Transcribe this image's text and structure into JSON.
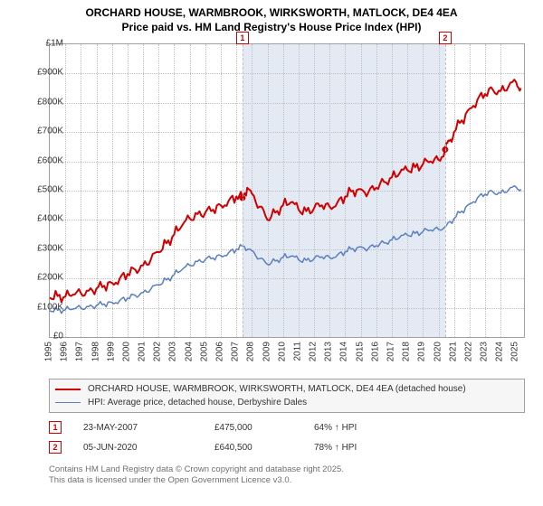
{
  "title_line1": "ORCHARD HOUSE, WARMBROOK, WIRKSWORTH, MATLOCK, DE4 4EA",
  "title_line2": "Price paid vs. HM Land Registry's House Price Index (HPI)",
  "chart": {
    "type": "line",
    "background_color": "#ffffff",
    "grid_color": "#bfbfbf",
    "shaded_band_color": "#e4eaf3",
    "plot_border_color": "#a0a0a0",
    "ylim": [
      0,
      1000000
    ],
    "ytick_step": 100000,
    "ytick_labels": [
      "£0",
      "£100K",
      "£200K",
      "£300K",
      "£400K",
      "£500K",
      "£600K",
      "£700K",
      "£800K",
      "£900K",
      "£1M"
    ],
    "xlim": [
      1995,
      2025.5
    ],
    "xticks": [
      1995,
      1996,
      1997,
      1998,
      1999,
      2000,
      2001,
      2002,
      2003,
      2004,
      2005,
      2006,
      2007,
      2008,
      2009,
      2010,
      2011,
      2012,
      2013,
      2014,
      2015,
      2016,
      2017,
      2018,
      2019,
      2020,
      2021,
      2022,
      2023,
      2024,
      2025
    ],
    "series": [
      {
        "name": "price-paid",
        "label": "ORCHARD HOUSE, WARMBROOK, WIRKSWORTH, MATLOCK, DE4 4EA (detached house)",
        "color": "#d00000",
        "width": 2,
        "points": [
          [
            1995.0,
            135000
          ],
          [
            1995.5,
            140000
          ],
          [
            1996.0,
            138000
          ],
          [
            1996.5,
            145000
          ],
          [
            1997.0,
            150000
          ],
          [
            1997.5,
            158000
          ],
          [
            1998.0,
            165000
          ],
          [
            1998.5,
            175000
          ],
          [
            1999.0,
            185000
          ],
          [
            1999.5,
            200000
          ],
          [
            2000.0,
            215000
          ],
          [
            2000.5,
            230000
          ],
          [
            2001.0,
            245000
          ],
          [
            2001.5,
            265000
          ],
          [
            2002.0,
            290000
          ],
          [
            2002.5,
            320000
          ],
          [
            2003.0,
            350000
          ],
          [
            2003.5,
            380000
          ],
          [
            2004.0,
            405000
          ],
          [
            2004.5,
            420000
          ],
          [
            2005.0,
            425000
          ],
          [
            2005.5,
            435000
          ],
          [
            2006.0,
            450000
          ],
          [
            2006.5,
            465000
          ],
          [
            2007.0,
            480000
          ],
          [
            2007.39,
            475000
          ],
          [
            2007.7,
            510000
          ],
          [
            2008.0,
            490000
          ],
          [
            2008.5,
            445000
          ],
          [
            2009.0,
            400000
          ],
          [
            2009.5,
            425000
          ],
          [
            2010.0,
            450000
          ],
          [
            2010.5,
            460000
          ],
          [
            2011.0,
            435000
          ],
          [
            2011.5,
            430000
          ],
          [
            2012.0,
            440000
          ],
          [
            2012.5,
            450000
          ],
          [
            2013.0,
            445000
          ],
          [
            2013.5,
            460000
          ],
          [
            2014.0,
            480000
          ],
          [
            2014.5,
            500000
          ],
          [
            2015.0,
            505000
          ],
          [
            2015.5,
            495000
          ],
          [
            2016.0,
            510000
          ],
          [
            2016.5,
            530000
          ],
          [
            2017.0,
            545000
          ],
          [
            2017.5,
            560000
          ],
          [
            2018.0,
            570000
          ],
          [
            2018.5,
            580000
          ],
          [
            2019.0,
            590000
          ],
          [
            2019.5,
            600000
          ],
          [
            2020.0,
            605000
          ],
          [
            2020.43,
            640500
          ],
          [
            2020.7,
            670000
          ],
          [
            2021.0,
            700000
          ],
          [
            2021.5,
            740000
          ],
          [
            2022.0,
            780000
          ],
          [
            2022.5,
            810000
          ],
          [
            2023.0,
            830000
          ],
          [
            2023.5,
            845000
          ],
          [
            2024.0,
            840000
          ],
          [
            2024.5,
            855000
          ],
          [
            2025.0,
            870000
          ],
          [
            2025.3,
            850000
          ]
        ]
      },
      {
        "name": "hpi",
        "label": "HPI: Average price, detached house, Derbyshire Dales",
        "color": "#5a7fc0",
        "width": 1.5,
        "points": [
          [
            1995.0,
            90000
          ],
          [
            1995.5,
            92000
          ],
          [
            1996.0,
            93000
          ],
          [
            1996.5,
            96000
          ],
          [
            1997.0,
            100000
          ],
          [
            1997.5,
            104000
          ],
          [
            1998.0,
            108000
          ],
          [
            1998.5,
            113000
          ],
          [
            1999.0,
            118000
          ],
          [
            1999.5,
            125000
          ],
          [
            2000.0,
            133000
          ],
          [
            2000.5,
            142000
          ],
          [
            2001.0,
            152000
          ],
          [
            2001.5,
            164000
          ],
          [
            2002.0,
            178000
          ],
          [
            2002.5,
            195000
          ],
          [
            2003.0,
            213000
          ],
          [
            2003.5,
            230000
          ],
          [
            2004.0,
            245000
          ],
          [
            2004.5,
            258000
          ],
          [
            2005.0,
            265000
          ],
          [
            2005.5,
            270000
          ],
          [
            2006.0,
            278000
          ],
          [
            2006.5,
            288000
          ],
          [
            2007.0,
            300000
          ],
          [
            2007.5,
            310000
          ],
          [
            2008.0,
            295000
          ],
          [
            2008.5,
            268000
          ],
          [
            2009.0,
            248000
          ],
          [
            2009.5,
            260000
          ],
          [
            2010.0,
            272000
          ],
          [
            2010.5,
            276000
          ],
          [
            2011.0,
            264000
          ],
          [
            2011.5,
            262000
          ],
          [
            2012.0,
            268000
          ],
          [
            2012.5,
            274000
          ],
          [
            2013.0,
            272000
          ],
          [
            2013.5,
            280000
          ],
          [
            2014.0,
            292000
          ],
          [
            2014.5,
            302000
          ],
          [
            2015.0,
            308000
          ],
          [
            2015.5,
            303000
          ],
          [
            2016.0,
            312000
          ],
          [
            2016.5,
            322000
          ],
          [
            2017.0,
            332000
          ],
          [
            2017.5,
            340000
          ],
          [
            2018.0,
            348000
          ],
          [
            2018.5,
            354000
          ],
          [
            2019.0,
            360000
          ],
          [
            2019.5,
            365000
          ],
          [
            2020.0,
            368000
          ],
          [
            2020.5,
            380000
          ],
          [
            2021.0,
            405000
          ],
          [
            2021.5,
            430000
          ],
          [
            2022.0,
            455000
          ],
          [
            2022.5,
            475000
          ],
          [
            2023.0,
            488000
          ],
          [
            2023.5,
            496000
          ],
          [
            2024.0,
            492000
          ],
          [
            2024.5,
            502000
          ],
          [
            2025.0,
            512000
          ],
          [
            2025.3,
            505000
          ]
        ]
      }
    ],
    "sale_markers": [
      {
        "n": "1",
        "x": 2007.39,
        "y": 475000
      },
      {
        "n": "2",
        "x": 2020.43,
        "y": 640500
      }
    ]
  },
  "legend_title_fontsize": 10,
  "sales": [
    {
      "n": "1",
      "date": "23-MAY-2007",
      "price": "£475,000",
      "pct": "64% ↑ HPI"
    },
    {
      "n": "2",
      "date": "05-JUN-2020",
      "price": "£640,500",
      "pct": "78% ↑ HPI"
    }
  ],
  "footer_line1": "Contains HM Land Registry data © Crown copyright and database right 2025.",
  "footer_line2": "This data is licensed under the Open Government Licence v3.0."
}
